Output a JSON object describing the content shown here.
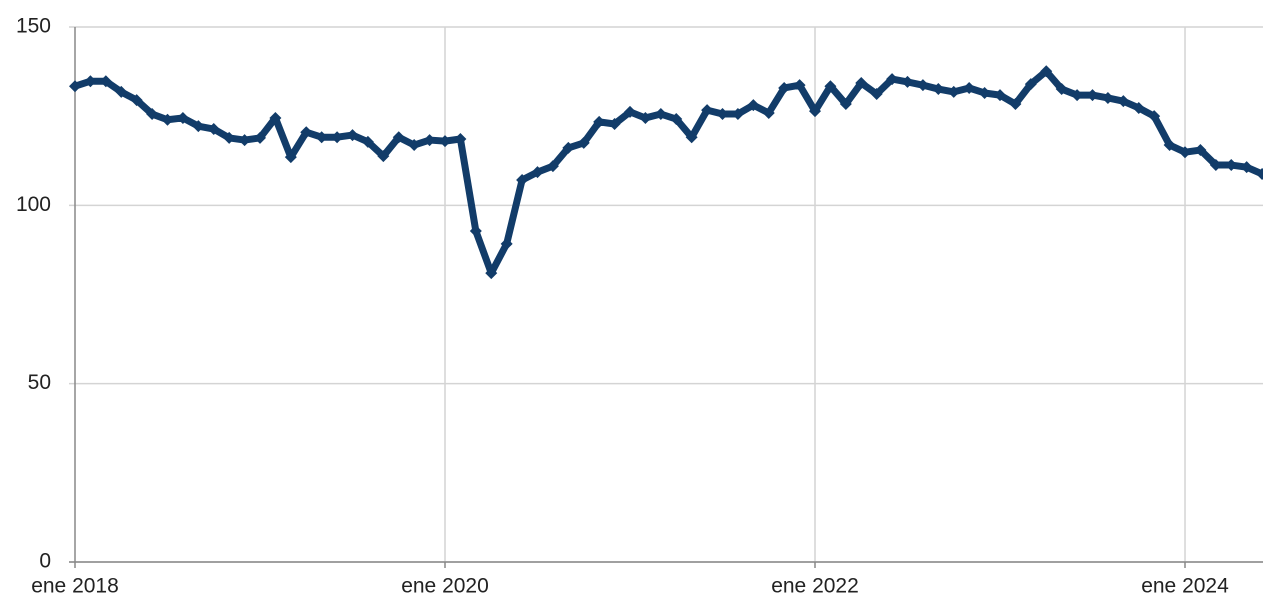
{
  "chart_data": {
    "type": "line",
    "categories": [
      "ene 2018",
      null,
      null,
      null,
      null,
      null,
      null,
      null,
      null,
      null,
      null,
      null,
      null,
      null,
      null,
      null,
      null,
      null,
      null,
      null,
      null,
      null,
      null,
      null,
      "ene 2020",
      null,
      null,
      null,
      null,
      null,
      null,
      null,
      null,
      null,
      null,
      null,
      null,
      null,
      null,
      null,
      null,
      null,
      null,
      null,
      null,
      null,
      null,
      null,
      "ene 2022",
      null,
      null,
      null,
      null,
      null,
      null,
      null,
      null,
      null,
      null,
      null,
      null,
      null,
      null,
      null,
      null,
      null,
      null,
      null,
      null,
      null,
      null,
      null,
      "ene 2024",
      null,
      null,
      null,
      null,
      null
    ],
    "values": [
      133.4,
      134.8,
      134.8,
      131.8,
      129.5,
      125.6,
      124,
      124.5,
      122.2,
      121.4,
      118.9,
      118.3,
      118.9,
      124.5,
      113.5,
      120.5,
      119.1,
      119.1,
      119.7,
      117.8,
      113.8,
      119.1,
      116.9,
      118.3,
      118,
      118.6,
      92.8,
      81,
      89.2,
      107.1,
      109.3,
      111,
      116.1,
      117.5,
      123.4,
      122.8,
      126.2,
      124.5,
      125.6,
      124.2,
      119.1,
      126.7,
      125.6,
      125.6,
      128.1,
      125.9,
      132.9,
      133.7,
      126.4,
      133.4,
      128.4,
      134.3,
      131.2,
      135.4,
      134.6,
      133.7,
      132.6,
      131.8,
      132.9,
      131.5,
      130.9,
      128.4,
      134,
      137.6,
      132.6,
      130.9,
      130.9,
      130.1,
      129.2,
      127.3,
      125,
      116.9,
      114.9,
      115.5,
      111.3,
      111.3,
      110.7,
      108.8
    ],
    "color": "#123c69",
    "ylim": [
      0,
      150
    ],
    "yticks": [
      0,
      50,
      100,
      150
    ],
    "grid": true
  }
}
